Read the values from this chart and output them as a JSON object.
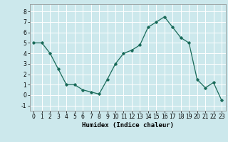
{
  "xlabel": "Humidex (Indice chaleur)",
  "x": [
    0,
    1,
    2,
    3,
    4,
    5,
    6,
    7,
    8,
    9,
    10,
    11,
    12,
    13,
    14,
    15,
    16,
    17,
    18,
    19,
    20,
    21,
    22,
    23
  ],
  "y": [
    5.0,
    5.0,
    4.0,
    2.5,
    1.0,
    1.0,
    0.5,
    0.3,
    0.1,
    1.5,
    3.0,
    4.0,
    4.3,
    4.8,
    6.5,
    7.0,
    7.5,
    6.5,
    5.5,
    5.0,
    1.5,
    0.7,
    1.2,
    -0.5
  ],
  "line_color": "#1a6b5a",
  "marker": "D",
  "marker_size": 1.8,
  "bg_color": "#cce8ec",
  "grid_color": "#ffffff",
  "ylim": [
    -1.5,
    8.7
  ],
  "xlim": [
    -0.5,
    23.5
  ],
  "yticks": [
    -1,
    0,
    1,
    2,
    3,
    4,
    5,
    6,
    7,
    8
  ],
  "xticks": [
    0,
    1,
    2,
    3,
    4,
    5,
    6,
    7,
    8,
    9,
    10,
    11,
    12,
    13,
    14,
    15,
    16,
    17,
    18,
    19,
    20,
    21,
    22,
    23
  ],
  "xlabel_fontsize": 6.5,
  "tick_fontsize": 5.5,
  "line_width": 0.9
}
